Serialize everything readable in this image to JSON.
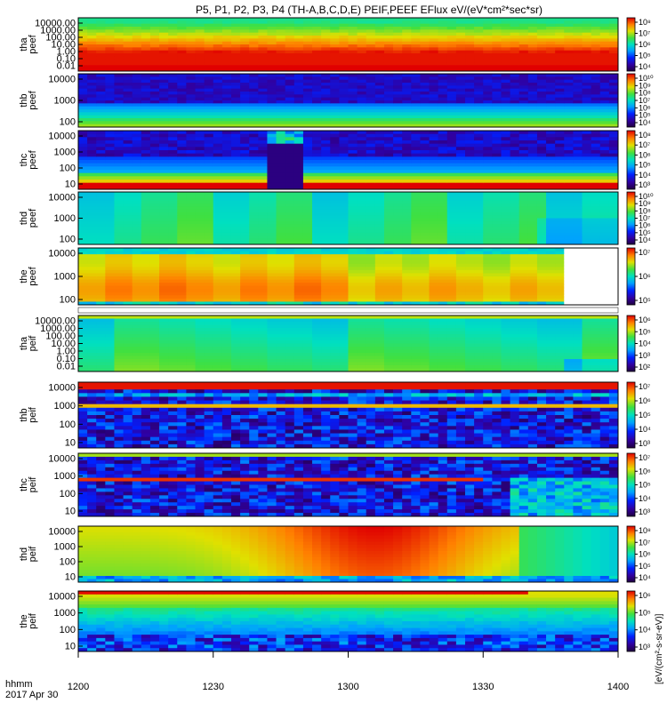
{
  "title": "P5, P1, P2, P3, P4 (TH-A,B,C,D,E) PEIF,PEEF EFlux eV/(eV*cm²*sec*sr)",
  "time_axis": {
    "label_top": "hhmm",
    "label_bottom": "2017 Apr 30",
    "ticks": [
      "1200",
      "1230",
      "1300",
      "1330",
      "1400"
    ],
    "range": [
      0,
      120
    ]
  },
  "colorbar_label": "[eV/(cm²-s-sr-eV)]",
  "colors": {
    "saturated_high": "#e00000",
    "background": "#ffffff",
    "text": "#000000"
  },
  "panels": [
    {
      "id": "tha-peef",
      "ylabel": [
        "tha",
        "peef"
      ],
      "yticks": [
        "10000.00",
        "1000.00",
        "100.00",
        "10.00",
        "1.00",
        "0.10",
        "0.01"
      ],
      "cbar_ticks": [
        "10⁸",
        "10⁷",
        "10⁶",
        "10⁵",
        "10⁴"
      ],
      "pattern": "bands"
    },
    {
      "id": "thb-peef",
      "ylabel": [
        "thb",
        "peef"
      ],
      "yticks": [
        "10000",
        "1000",
        "100"
      ],
      "cbar_ticks": [
        "10¹⁰",
        "10⁹",
        "10⁸",
        "10⁷",
        "10⁶",
        "10⁵",
        "10⁴"
      ],
      "pattern": "noisy_low"
    },
    {
      "id": "thc-peef",
      "ylabel": [
        "thc",
        "peef"
      ],
      "yticks": [
        "10000",
        "1000",
        "100",
        "10"
      ],
      "cbar_ticks": [
        "10⁸",
        "10⁷",
        "10⁶",
        "10⁵",
        "10⁴",
        "10³"
      ],
      "pattern": "noisy_gap"
    },
    {
      "id": "thd-peef",
      "ylabel": [
        "thd",
        "peef"
      ],
      "yticks": [
        "10000",
        "1000",
        "100"
      ],
      "cbar_ticks": [
        "10¹⁰",
        "10⁹",
        "10⁸",
        "10⁷",
        "10⁶",
        "10⁵",
        "10⁴"
      ],
      "pattern": "green_blocks"
    },
    {
      "id": "the-peef",
      "ylabel": [
        "the",
        "peef"
      ],
      "yticks": [
        "10000",
        "1000",
        "100"
      ],
      "cbar_ticks": [
        "10⁷",
        "10⁶",
        "10⁵"
      ],
      "pattern": "yellow_white_end"
    },
    {
      "id": "tha-peif",
      "ylabel": [
        "tha",
        "peif"
      ],
      "yticks": [
        "10000.00",
        "1000.00",
        "100.00",
        "10.00",
        "1.00",
        "0.10",
        "0.01"
      ],
      "cbar_ticks": [
        "10⁶",
        "10⁵",
        "10⁴",
        "10³",
        "10²"
      ],
      "pattern": "cyan_field"
    },
    {
      "id": "thb-peif",
      "ylabel": [
        "thb",
        "peif"
      ],
      "yticks": [
        "10000",
        "1000",
        "100",
        "10"
      ],
      "cbar_ticks": [
        "10⁷",
        "10⁶",
        "10⁵",
        "10⁴",
        "10³"
      ],
      "pattern": "noisy_ion"
    },
    {
      "id": "thc-peif",
      "ylabel": [
        "thc",
        "peif"
      ],
      "yticks": [
        "10000",
        "1000",
        "100",
        "10"
      ],
      "cbar_ticks": [
        "10⁷",
        "10⁶",
        "10⁵",
        "10⁴",
        "10³"
      ],
      "pattern": "noisy_ion2"
    },
    {
      "id": "thd-peif",
      "ylabel": [
        "thd",
        "peif"
      ],
      "yticks": [
        "10000",
        "1000",
        "100",
        "10"
      ],
      "cbar_ticks": [
        "10⁸",
        "10⁷",
        "10⁶",
        "10⁵",
        "10⁴"
      ],
      "pattern": "hot_center"
    },
    {
      "id": "the-peif",
      "ylabel": [
        "the",
        "peif"
      ],
      "yticks": [
        "10000",
        "1000",
        "100",
        "10"
      ],
      "cbar_ticks": [
        "10⁶",
        "10⁵",
        "10⁴",
        "10³"
      ],
      "pattern": "yellow_top"
    }
  ],
  "chart_data": {
    "type": "heatmap",
    "title": "P5, P1, P2, P3, P4 (TH-A,B,C,D,E) PEIF,PEEF EFlux eV/(eV*cm²*sec*sr)",
    "xlabel": "hhmm",
    "x_ticks": [
      "1200",
      "1230",
      "1300",
      "1330",
      "1400"
    ],
    "series": [
      {
        "name": "tha peef"
      },
      {
        "name": "thb peef"
      },
      {
        "name": "thc peef"
      },
      {
        "name": "thd peef"
      },
      {
        "name": "the peef"
      },
      {
        "name": "tha peif"
      },
      {
        "name": "thb peif"
      },
      {
        "name": "thc peif"
      },
      {
        "name": "thd peif"
      },
      {
        "name": "the peif"
      }
    ],
    "yscale": "log",
    "colorscale": "log",
    "legend": "right"
  }
}
